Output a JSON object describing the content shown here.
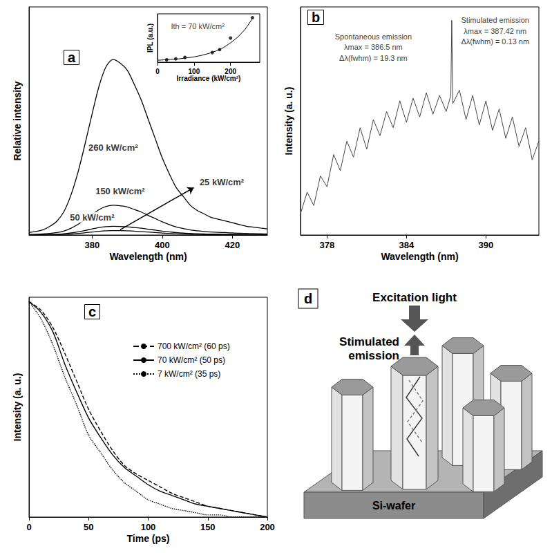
{
  "chart_data": [
    {
      "title": "a",
      "type": "line",
      "x_label": "Wavelength (nm)",
      "y_label": "Relative intensity",
      "x": [
        362,
        364,
        366,
        368,
        370,
        372,
        374,
        376,
        378,
        380,
        382,
        384,
        386,
        388,
        390,
        392,
        394,
        396,
        398,
        400,
        402,
        404,
        406,
        408,
        410,
        412,
        414,
        416,
        418,
        420,
        422,
        424,
        426,
        428,
        430
      ],
      "xlim": [
        362,
        430
      ],
      "xticks": [
        380,
        400,
        420
      ],
      "ylim": [
        0,
        1.3
      ],
      "tick_labels": "x",
      "series": [
        {
          "color": "#000000",
          "values": [
            0.015,
            0.02,
            0.03,
            0.05,
            0.08,
            0.135,
            0.23,
            0.36,
            0.52,
            0.69,
            0.85,
            0.96,
            1.0,
            0.98,
            0.94,
            0.86,
            0.77,
            0.66,
            0.55,
            0.44,
            0.35,
            0.27,
            0.22,
            0.17,
            0.14,
            0.12,
            0.1,
            0.09,
            0.08,
            0.07,
            0.06,
            0.05,
            0.045,
            0.04,
            0.035
          ]
        },
        {
          "color": "#000000",
          "values": [
            0.003,
            0.004,
            0.006,
            0.009,
            0.014,
            0.023,
            0.039,
            0.061,
            0.088,
            0.117,
            0.145,
            0.163,
            0.17,
            0.167,
            0.16,
            0.146,
            0.131,
            0.112,
            0.094,
            0.075,
            0.06,
            0.046,
            0.037,
            0.029,
            0.024,
            0.02,
            0.017,
            0.015,
            0.014,
            0.012,
            0.01,
            0.009,
            0.008,
            0.007,
            0.006
          ]
        },
        {
          "color": "#000000",
          "values": [
            0.001,
            0.001,
            0.002,
            0.003,
            0.004,
            0.007,
            0.012,
            0.018,
            0.026,
            0.035,
            0.043,
            0.048,
            0.05,
            0.049,
            0.047,
            0.043,
            0.039,
            0.033,
            0.028,
            0.022,
            0.018,
            0.014,
            0.011,
            0.009,
            0.007,
            0.006,
            0.005,
            0.005,
            0.004,
            0.004,
            0.003,
            0.003,
            0.002,
            0.002,
            0.002
          ]
        },
        {
          "color": "#000000",
          "values": [
            0.001,
            0.001,
            0.001,
            0.002,
            0.002,
            0.004,
            0.006,
            0.009,
            0.013,
            0.017,
            0.021,
            0.024,
            0.025,
            0.025,
            0.024,
            0.022,
            0.019,
            0.017,
            0.014,
            0.011,
            0.009,
            0.007,
            0.006,
            0.004,
            0.004,
            0.003,
            0.003,
            0.002,
            0.002,
            0.002,
            0.002,
            0.001,
            0.001,
            0.001,
            0.001
          ]
        }
      ],
      "annotations": [
        {
          "text": "260 kW/cm²",
          "x": 386,
          "y": 0.5
        },
        {
          "text": "150 kW/cm²",
          "x": 388,
          "y": 0.25
        },
        {
          "text": "50 kW/cm²",
          "x": 380,
          "y": 0.1
        },
        {
          "text": "25 kW/cm²",
          "x": 417,
          "y": 0.3,
          "arrow": [
            [
              388,
              0.03
            ],
            [
              409,
              0.27
            ]
          ]
        }
      ]
    },
    {
      "type": "scatter",
      "x_label": "Irradiance (kW/cm²)",
      "y_label": "IPL (a.u.)",
      "xlim": [
        0,
        280
      ],
      "xticks": [
        0,
        100,
        200
      ],
      "ylim": [
        0,
        1
      ],
      "tick_labels": "x",
      "series": [
        {
          "type": "scatter",
          "marker": "circle",
          "color": "#000000",
          "x": [
            25,
            50,
            75,
            150,
            170,
            200,
            260
          ],
          "values": [
            0.05,
            0.07,
            0.1,
            0.2,
            0.26,
            0.5,
            0.92
          ]
        },
        {
          "type": "line",
          "color": "#000000",
          "x": [
            0,
            20,
            40,
            60,
            80,
            100,
            120,
            140,
            160,
            180,
            200,
            220,
            240,
            260
          ],
          "values": [
            0.04,
            0.05,
            0.06,
            0.07,
            0.09,
            0.11,
            0.14,
            0.18,
            0.23,
            0.3,
            0.4,
            0.52,
            0.68,
            0.9
          ]
        }
      ],
      "annotations": [
        {
          "text": "Ith = 70 kW/cm²",
          "x": 110,
          "y": 0.75
        }
      ]
    },
    {
      "title": "b",
      "type": "line",
      "x_label": "Wavelength (nm)",
      "y_label": "Intensity (a. u.)",
      "x": [
        376,
        376.5,
        377,
        377.5,
        378,
        378.5,
        379,
        379.5,
        380,
        380.5,
        381,
        381.5,
        382,
        382.5,
        383,
        383.5,
        384,
        384.5,
        385,
        385.5,
        386,
        386.5,
        387,
        387.35,
        387.42,
        387.5,
        388,
        388.5,
        389,
        389.5,
        390,
        390.5,
        391,
        391.5,
        392,
        392.5,
        393,
        393.5,
        394
      ],
      "xlim": [
        376,
        394
      ],
      "xticks": [
        378,
        384,
        390
      ],
      "ylim": [
        0.2,
        1.05
      ],
      "tick_labels": "x",
      "series": [
        {
          "color": "#444444",
          "values": [
            0.28,
            0.36,
            0.31,
            0.42,
            0.38,
            0.5,
            0.44,
            0.55,
            0.49,
            0.6,
            0.52,
            0.63,
            0.57,
            0.66,
            0.6,
            0.7,
            0.62,
            0.71,
            0.64,
            0.73,
            0.65,
            0.72,
            0.66,
            0.72,
            1.0,
            0.69,
            0.74,
            0.63,
            0.72,
            0.61,
            0.7,
            0.59,
            0.67,
            0.56,
            0.64,
            0.53,
            0.6,
            0.48,
            0.55
          ]
        }
      ],
      "annotations": [
        {
          "text": "Spontaneous emission",
          "x": 381.5,
          "y": 0.94
        },
        {
          "text": "λmax = 386.5 nm",
          "x": 381.5,
          "y": 0.9
        },
        {
          "text": "Δλ(fwhm) = 19.3 nm",
          "x": 381.5,
          "y": 0.86
        },
        {
          "text": "Stimulated emission",
          "x": 390.7,
          "y": 1.0
        },
        {
          "text": "λmax = 387.42 nm",
          "x": 390.7,
          "y": 0.96
        },
        {
          "text": "Δλ(fwhm) = 0.13 nm",
          "x": 390.7,
          "y": 0.92
        }
      ]
    },
    {
      "title": "c",
      "type": "line",
      "x_label": "Time (ps)",
      "y_label": "Intensity (a. u.)",
      "x": [
        0,
        10,
        20,
        30,
        40,
        50,
        60,
        70,
        80,
        90,
        100,
        110,
        120,
        130,
        140,
        150,
        160,
        170,
        180,
        190,
        200
      ],
      "xlim": [
        0,
        200
      ],
      "xticks": [
        0,
        50,
        100,
        150,
        200
      ],
      "ylim": [
        0,
        1.02
      ],
      "tick_labels": "x",
      "legend": "right",
      "series": [
        {
          "name": "700 kW/cm² (60 ps)",
          "color": "#000000",
          "line_style": "dashed",
          "values": [
            1.0,
            0.96,
            0.88,
            0.76,
            0.63,
            0.5,
            0.4,
            0.31,
            0.24,
            0.2,
            0.17,
            0.14,
            0.11,
            0.09,
            0.07,
            0.05,
            0.04,
            0.03,
            0.02,
            0.01,
            0.0
          ]
        },
        {
          "name": "70 kW/cm² (50 ps)",
          "color": "#000000",
          "line_style": "solid",
          "values": [
            1.0,
            0.95,
            0.86,
            0.71,
            0.58,
            0.46,
            0.37,
            0.29,
            0.23,
            0.19,
            0.15,
            0.12,
            0.1,
            0.08,
            0.06,
            0.05,
            0.04,
            0.03,
            0.02,
            0.01,
            0.0
          ]
        },
        {
          "name": "7 kW/cm² (35 ps)",
          "color": "#000000",
          "line_style": "dotted",
          "values": [
            1.0,
            0.92,
            0.8,
            0.65,
            0.52,
            0.38,
            0.3,
            0.22,
            0.16,
            0.12,
            0.08,
            0.06,
            0.04,
            0.03,
            0.02,
            0.01,
            0.01,
            0.0,
            0.0,
            0.0,
            0.0
          ]
        }
      ]
    }
  ],
  "diagram": {
    "title": "d",
    "labels": {
      "excitation": "Excitation light",
      "emission": "Stimulated emission",
      "substrate": "Si-wafer"
    }
  }
}
